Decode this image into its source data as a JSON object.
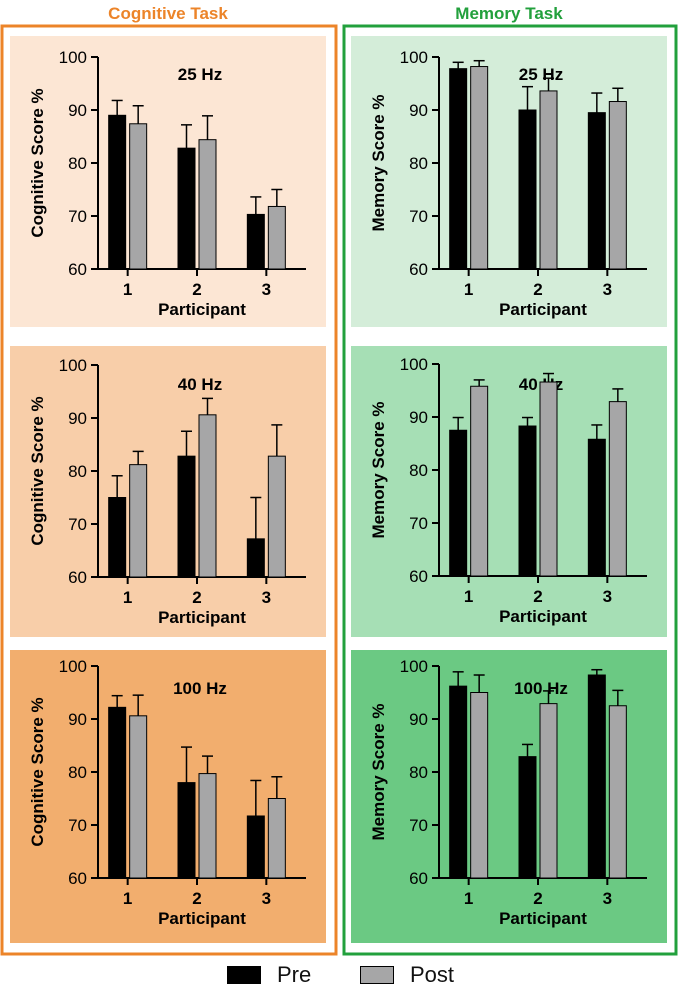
{
  "colors": {
    "cognitive_accent": "#EC8429",
    "memory_accent": "#22A03C",
    "pre": "#000000",
    "post": "#A6A6A7",
    "panel_bg": {
      "cognitive": [
        "#FCE6D4",
        "#F8CEA9",
        "#F2AE6E"
      ],
      "memory": [
        "#D4EDD9",
        "#A6DFB5",
        "#6BC983"
      ]
    }
  },
  "groups": [
    {
      "title": "Cognitive Task",
      "key": "cognitive"
    },
    {
      "title": "Memory Task",
      "key": "memory"
    }
  ],
  "legend": [
    {
      "label": "Pre",
      "color": "#000000"
    },
    {
      "label": "Post",
      "color": "#A6A6A7"
    }
  ],
  "chart_data": [
    {
      "group": "cognitive",
      "type": "bar",
      "title": "25 Hz",
      "xlabel": "Participant",
      "ylabel": "Cognitive Score %",
      "ylim": [
        60,
        100
      ],
      "yticks": [
        60,
        70,
        80,
        90,
        100
      ],
      "categories": [
        "1",
        "2",
        "3"
      ],
      "series": [
        {
          "name": "Pre",
          "values": [
            89,
            82.8,
            70.3
          ],
          "errors": [
            2.8,
            4.4,
            3.3
          ]
        },
        {
          "name": "Post",
          "values": [
            87.4,
            84.4,
            71.8
          ],
          "errors": [
            3.4,
            4.5,
            3.2
          ]
        }
      ]
    },
    {
      "group": "cognitive",
      "type": "bar",
      "title": "40 Hz",
      "xlabel": "Participant",
      "ylabel": "Cognitive Score %",
      "ylim": [
        60,
        100
      ],
      "yticks": [
        60,
        70,
        80,
        90,
        100
      ],
      "categories": [
        "1",
        "2",
        "3"
      ],
      "series": [
        {
          "name": "Pre",
          "values": [
            75,
            82.8,
            67.2
          ],
          "errors": [
            4.1,
            4.7,
            7.8
          ]
        },
        {
          "name": "Post",
          "values": [
            81.2,
            90.6,
            82.8
          ],
          "errors": [
            2.5,
            3.1,
            5.9
          ]
        }
      ]
    },
    {
      "group": "cognitive",
      "type": "bar",
      "title": "100 Hz",
      "xlabel": "Participant",
      "ylabel": "Cognitive Score %",
      "ylim": [
        60,
        100
      ],
      "yticks": [
        60,
        70,
        80,
        90,
        100
      ],
      "categories": [
        "1",
        "2",
        "3"
      ],
      "series": [
        {
          "name": "Pre",
          "values": [
            92.2,
            78,
            71.7
          ],
          "errors": [
            2.2,
            6.7,
            6.7
          ]
        },
        {
          "name": "Post",
          "values": [
            90.6,
            79.7,
            75
          ],
          "errors": [
            3.9,
            3.3,
            4.1
          ]
        }
      ]
    },
    {
      "group": "memory",
      "type": "bar",
      "title": "25 Hz",
      "xlabel": "Participant",
      "ylabel": "Memory Score %",
      "ylim": [
        60,
        100
      ],
      "yticks": [
        60,
        70,
        80,
        90,
        100
      ],
      "categories": [
        "1",
        "2",
        "3"
      ],
      "series": [
        {
          "name": "Pre",
          "values": [
            97.8,
            90,
            89.5
          ],
          "errors": [
            1.2,
            4.4,
            3.7
          ]
        },
        {
          "name": "Post",
          "values": [
            98.2,
            93.6,
            91.6
          ],
          "errors": [
            1.1,
            2.4,
            2.5
          ]
        }
      ]
    },
    {
      "group": "memory",
      "type": "bar",
      "title": "40 Hz",
      "xlabel": "Participant",
      "ylabel": "Memory Score %",
      "ylim": [
        60,
        100
      ],
      "yticks": [
        60,
        70,
        80,
        90,
        100
      ],
      "categories": [
        "1",
        "2",
        "3"
      ],
      "series": [
        {
          "name": "Pre",
          "values": [
            87.5,
            88.3,
            85.8
          ],
          "errors": [
            2.4,
            1.6,
            2.7
          ]
        },
        {
          "name": "Post",
          "values": [
            95.8,
            96.6,
            92.9
          ],
          "errors": [
            1.2,
            1.6,
            2.4
          ]
        }
      ]
    },
    {
      "group": "memory",
      "type": "bar",
      "title": "100 Hz",
      "xlabel": "Participant",
      "ylabel": "Memory Score %",
      "ylim": [
        60,
        100
      ],
      "yticks": [
        60,
        70,
        80,
        90,
        100
      ],
      "categories": [
        "1",
        "2",
        "3"
      ],
      "series": [
        {
          "name": "Pre",
          "values": [
            96.2,
            82.9,
            98.3
          ],
          "errors": [
            2.7,
            2.3,
            1.0
          ]
        },
        {
          "name": "Post",
          "values": [
            95,
            92.9,
            92.5
          ],
          "errors": [
            3.3,
            2.4,
            2.9
          ]
        }
      ]
    }
  ]
}
